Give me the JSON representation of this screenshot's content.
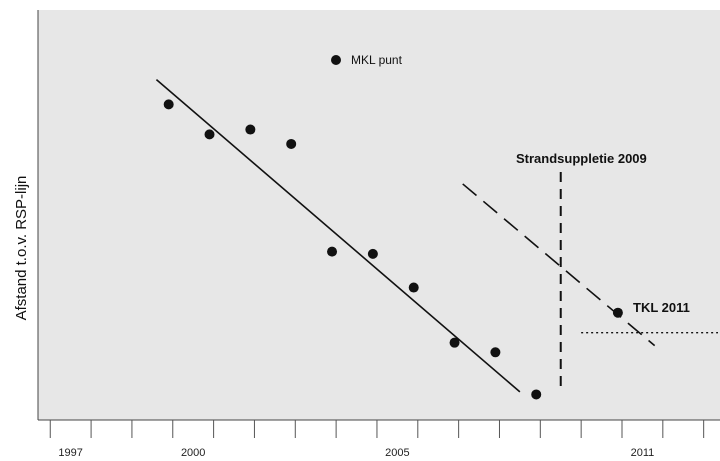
{
  "chart_data": {
    "type": "scatter",
    "title": "",
    "xlabel": "",
    "ylabel": "Afstand t.o.v. RSP-lijn",
    "xlim": [
      1996.2,
      2012.9
    ],
    "ylim": [
      0,
      100
    ],
    "x_ticks": [
      1997,
      2000,
      2005,
      2011
    ],
    "grid": false,
    "legend": {
      "position": "top-center",
      "entries": [
        "MKL punt"
      ]
    },
    "colors": {
      "background": "#e7e7e7",
      "marker": "#111111",
      "line": "#111111"
    },
    "series": [
      {
        "name": "MKL punt",
        "type": "scatter",
        "points": [
          {
            "x": 1999.4,
            "y": 82.6
          },
          {
            "x": 2000.4,
            "y": 74.5
          },
          {
            "x": 2001.4,
            "y": 75.8
          },
          {
            "x": 2002.4,
            "y": 71.9
          },
          {
            "x": 2003.4,
            "y": 42.8
          },
          {
            "x": 2004.4,
            "y": 42.2
          },
          {
            "x": 2005.4,
            "y": 33.1
          },
          {
            "x": 2006.4,
            "y": 18.2
          },
          {
            "x": 2007.4,
            "y": 15.6
          },
          {
            "x": 2008.4,
            "y": 4.2
          },
          {
            "x": 2010.4,
            "y": 26.3
          }
        ]
      }
    ],
    "trend_lines": [
      {
        "style": "solid",
        "from": {
          "x": 1999.1,
          "y": 89.3
        },
        "to": {
          "x": 2008.0,
          "y": 4.9
        }
      },
      {
        "style": "dashed",
        "from": {
          "x": 2006.6,
          "y": 61.1
        },
        "to": {
          "x": 2011.3,
          "y": 17.4
        }
      }
    ],
    "annotations": [
      {
        "label": "Strandsuppletie 2009",
        "type": "vertical-line",
        "style": "dashed",
        "x": 2009.0
      },
      {
        "label": "TKL 2011",
        "type": "horizontal-line",
        "style": "dotted",
        "y": 20.9,
        "x_from": 2009.5,
        "x_to": 2012.9
      }
    ]
  }
}
